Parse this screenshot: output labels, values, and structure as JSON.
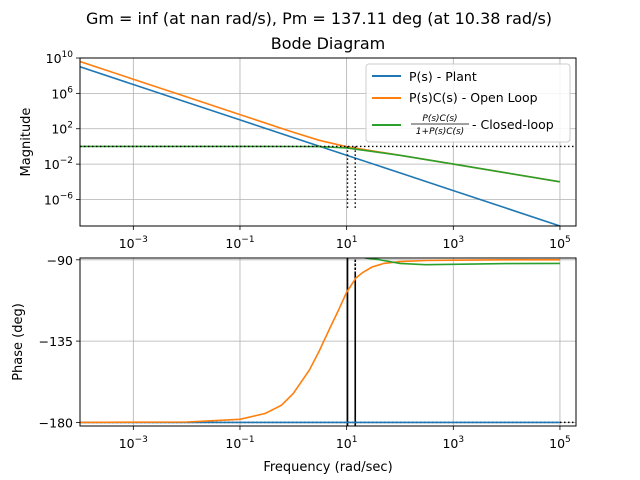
{
  "figure": {
    "suptitle": "Gm = inf (at nan rad/s), Pm = 137.11 deg (at 10.38 rad/s)",
    "title": "Bode Diagram"
  },
  "chart_data": [
    {
      "type": "line",
      "name": "magnitude",
      "xscale": "log",
      "yscale": "log",
      "xlim": [
        0.0001,
        200000
      ],
      "ylim": [
        1e-09,
        10000000000.0
      ],
      "xticks": [
        0.001,
        0.1,
        10,
        1000,
        100000
      ],
      "xtick_labels": [
        "10^-3",
        "10^-1",
        "10^1",
        "10^3",
        "10^5"
      ],
      "yticks": [
        1e-06,
        0.01,
        100,
        1000000.0,
        10000000000.0
      ],
      "ytick_labels": [
        "10^-6",
        "10^-2",
        "10^2",
        "10^6",
        "10^10"
      ],
      "ylabel": "Magnitude",
      "grid": true,
      "legend_loc": "upper right",
      "series": [
        {
          "name": "P(s) - Plant",
          "color": "#1f77b4",
          "x": [
            0.0001,
            0.001,
            0.01,
            0.1,
            1,
            10,
            100,
            1000,
            10000,
            100000
          ],
          "y": [
            1000000000.0,
            10000000.0,
            100000.0,
            1000,
            10,
            0.1,
            0.001,
            1e-05,
            1e-07,
            1e-09
          ]
        },
        {
          "name": "P(s)C(s) - Open Loop",
          "color": "#ff7f0e",
          "x": [
            0.0001,
            0.001,
            0.01,
            0.1,
            1,
            3,
            10,
            100,
            1000,
            10000,
            100000
          ],
          "y": [
            4000000000.0,
            40000000.0,
            400000.0,
            4000,
            40,
            5,
            0.94,
            0.1,
            0.01,
            0.001,
            0.0001
          ]
        },
        {
          "name": "P(s)C(s) / (1 + P(s)C(s)) - Closed-loop",
          "color": "#2ca02c",
          "x": [
            0.0001,
            0.001,
            0.01,
            0.1,
            1,
            3,
            10,
            100,
            1000,
            10000,
            100000
          ],
          "y": [
            1,
            1,
            1,
            1,
            0.98,
            0.95,
            0.68,
            0.1,
            0.01,
            0.001,
            0.0001
          ]
        }
      ],
      "reference_lines": {
        "unity_gain": 1,
        "crossover_w": 10.38,
        "crossover_w2": 14.5
      }
    },
    {
      "type": "line",
      "name": "phase",
      "xscale": "log",
      "xlim": [
        0.0001,
        200000
      ],
      "ylim": [
        -182,
        -89
      ],
      "xticks": [
        0.001,
        0.1,
        10,
        1000,
        100000
      ],
      "xtick_labels": [
        "10^-3",
        "10^-1",
        "10^1",
        "10^3",
        "10^5"
      ],
      "yticks": [
        -180,
        -135,
        -90
      ],
      "ytick_labels": [
        "−180",
        "−135",
        "−90"
      ],
      "xlabel": "Frequency (rad/sec)",
      "ylabel": "Phase (deg)",
      "grid": true,
      "series": [
        {
          "name": "P(s) - Plant",
          "color": "#1f77b4",
          "x": [
            0.0001,
            100000
          ],
          "y": [
            -180,
            -180
          ]
        },
        {
          "name": "P(s)C(s) - Open Loop",
          "color": "#ff7f0e",
          "x": [
            0.0001,
            0.01,
            0.1,
            0.3,
            0.6,
            1,
            2,
            3,
            5,
            7,
            10,
            15,
            20,
            30,
            50,
            100,
            300,
            1000,
            10000,
            100000
          ],
          "y": [
            -180,
            -179.8,
            -178.3,
            -175,
            -170.5,
            -164,
            -151,
            -141,
            -127,
            -118,
            -108,
            -100,
            -97,
            -94,
            -92,
            -91,
            -90.4,
            -90.2,
            -90,
            -90
          ]
        },
        {
          "name": "P(s)C(s) / (1 + P(s)C(s)) - Closed-loop",
          "color": "#2ca02c",
          "x": [
            22,
            40,
            100,
            300,
            1000,
            10000,
            100000
          ],
          "y": [
            -89,
            -89.9,
            -92,
            -92.7,
            -92.5,
            -92.1,
            -92
          ]
        }
      ],
      "reference_lines": {
        "phase_reference": -180,
        "crossover_w": 10.38,
        "crossover_w2": 14.5
      }
    }
  ]
}
